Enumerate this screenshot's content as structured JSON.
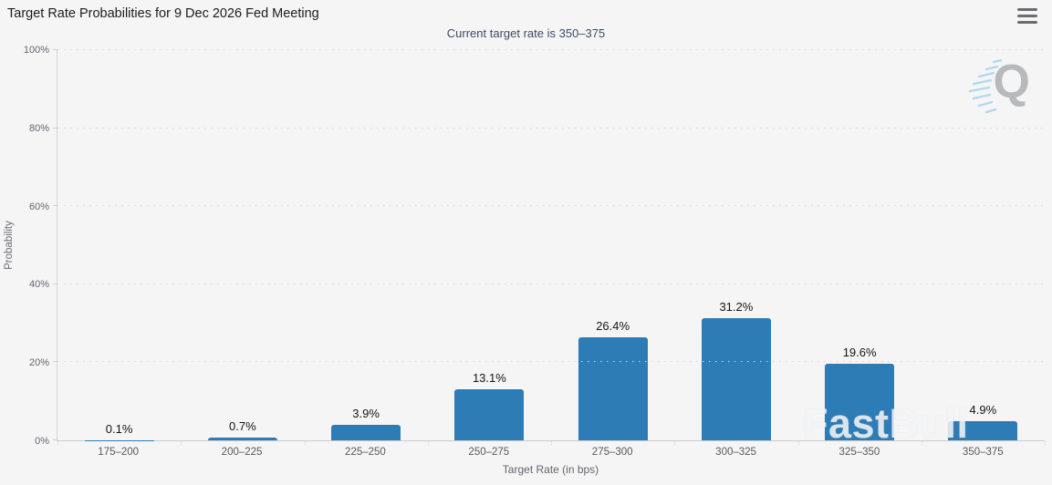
{
  "chart_data": {
    "type": "bar",
    "title": "Target Rate Probabilities for 9 Dec 2026 Fed Meeting",
    "subtitle": "Current target rate is 350–375",
    "categories": [
      "175–200",
      "200–225",
      "225–250",
      "250–275",
      "275–300",
      "300–325",
      "325–350",
      "350–375"
    ],
    "values": [
      0.1,
      0.7,
      3.9,
      13.1,
      26.4,
      31.2,
      19.6,
      4.9
    ],
    "value_labels": [
      "0.1%",
      "0.7%",
      "3.9%",
      "13.1%",
      "26.4%",
      "31.2%",
      "19.6%",
      "4.9%"
    ],
    "xlabel": "Target Rate (in bps)",
    "ylabel": "Probability",
    "ylim": [
      0,
      100
    ],
    "ytick_values": [
      0,
      20,
      40,
      60,
      80,
      100
    ],
    "ytick_labels": [
      "0%",
      "20%",
      "40%",
      "60%",
      "80%",
      "100%"
    ],
    "grid": "horizontal-dotted",
    "legend": "none",
    "bar_color": "#2d7cb5"
  },
  "header": {
    "menu_icon": "hamburger-menu-icon"
  },
  "watermarks": {
    "provider_logo_letter": "Q",
    "brand": "FastBull"
  },
  "colors": {
    "background": "#f5f5f6",
    "bar": "#2d7cb5",
    "title_text": "#1c1c1e",
    "subtitle_text": "#3e4b63",
    "axis_text": "#63666b",
    "gridline": "#d8d9db"
  }
}
